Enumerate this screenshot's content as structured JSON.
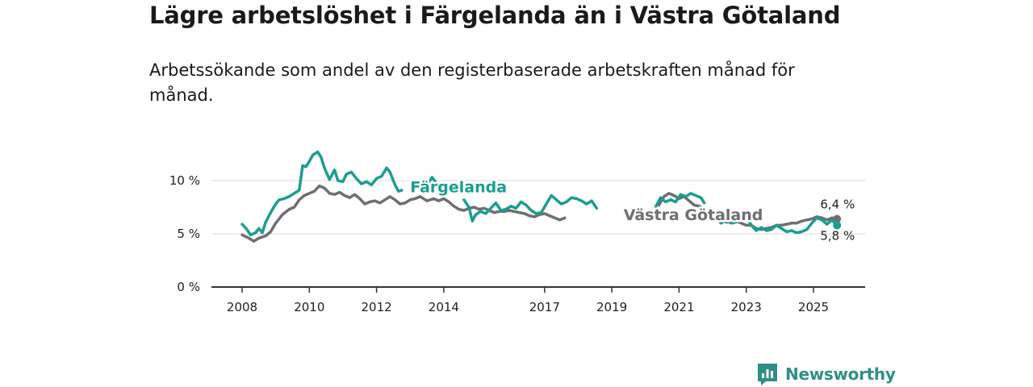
{
  "title": "Lägre arbetslöshet i Färgelanda än i Västra Götaland",
  "subtitle": "Arbetssökande som andel av den registerbaserade arbetskraften månad för månad.",
  "brand": {
    "name": "Newsworthy",
    "icon": "newsworthy-logo-icon",
    "color": "#2f8f86"
  },
  "chart_data": {
    "type": "line",
    "title": "Lägre arbetslöshet i Färgelanda än i Västra Götaland",
    "subtitle": "Arbetssökande som andel av den registerbaserade arbetskraften månad för månad.",
    "xlabel": "",
    "ylabel": "",
    "xlim": [
      2007.9,
      2026.1
    ],
    "ylim": [
      0,
      10
    ],
    "x_ticks": [
      2008,
      2010,
      2012,
      2014,
      2017,
      2019,
      2021,
      2023,
      2025
    ],
    "x_tick_labels": [
      "2008",
      "2010",
      "2012",
      "2014",
      "2017",
      "2019",
      "2021",
      "2023",
      "2025"
    ],
    "y_ticks": [
      0,
      5,
      10
    ],
    "y_tick_labels": [
      "0 %",
      "5 %",
      "10 %"
    ],
    "grid": true,
    "series": [
      {
        "name": "Västra Götaland",
        "color": "#6e6e73",
        "label_color": "#6e6e73",
        "segments": [
          [
            [
              2008.0,
              4.9
            ],
            [
              2008.2,
              4.6
            ],
            [
              2008.35,
              4.3
            ],
            [
              2008.5,
              4.6
            ],
            [
              2008.7,
              4.8
            ],
            [
              2008.85,
              5.2
            ],
            [
              2009.0,
              6.0
            ],
            [
              2009.2,
              6.8
            ],
            [
              2009.4,
              7.3
            ],
            [
              2009.55,
              7.5
            ],
            [
              2009.7,
              8.2
            ],
            [
              2009.85,
              8.6
            ],
            [
              2010.0,
              8.8
            ],
            [
              2010.15,
              9.0
            ],
            [
              2010.3,
              9.5
            ],
            [
              2010.45,
              9.3
            ],
            [
              2010.6,
              8.8
            ],
            [
              2010.75,
              8.7
            ],
            [
              2010.9,
              8.9
            ],
            [
              2011.05,
              8.6
            ],
            [
              2011.2,
              8.4
            ],
            [
              2011.35,
              8.7
            ],
            [
              2011.5,
              8.3
            ],
            [
              2011.65,
              7.8
            ],
            [
              2011.8,
              8.0
            ],
            [
              2011.95,
              8.1
            ],
            [
              2012.1,
              7.9
            ],
            [
              2012.25,
              8.2
            ],
            [
              2012.4,
              8.5
            ],
            [
              2012.55,
              8.2
            ],
            [
              2012.7,
              7.8
            ],
            [
              2012.85,
              7.9
            ],
            [
              2013.0,
              8.2
            ],
            [
              2013.15,
              8.3
            ],
            [
              2013.3,
              8.5
            ],
            [
              2013.5,
              8.1
            ],
            [
              2013.7,
              8.3
            ],
            [
              2013.85,
              8.1
            ],
            [
              2014.0,
              8.3
            ],
            [
              2014.15,
              8.0
            ],
            [
              2014.3,
              7.6
            ],
            [
              2014.45,
              7.3
            ],
            [
              2014.6,
              7.2
            ],
            [
              2014.75,
              7.4
            ],
            [
              2014.9,
              7.5
            ],
            [
              2015.05,
              7.3
            ],
            [
              2015.2,
              7.4
            ],
            [
              2015.35,
              7.2
            ],
            [
              2015.5,
              7.0
            ],
            [
              2015.65,
              7.1
            ],
            [
              2015.8,
              7.1
            ],
            [
              2015.95,
              7.2
            ],
            [
              2016.1,
              7.1
            ],
            [
              2016.25,
              7.0
            ],
            [
              2016.4,
              6.9
            ],
            [
              2016.55,
              6.7
            ],
            [
              2016.7,
              6.6
            ],
            [
              2016.85,
              6.8
            ],
            [
              2017.0,
              6.9
            ],
            [
              2017.15,
              6.7
            ],
            [
              2017.3,
              6.5
            ],
            [
              2017.45,
              6.3
            ],
            [
              2017.6,
              6.5
            ]
          ],
          [
            [
              2020.4,
              7.7
            ],
            [
              2020.55,
              8.5
            ],
            [
              2020.7,
              8.8
            ],
            [
              2020.85,
              8.6
            ],
            [
              2021.0,
              8.3
            ],
            [
              2021.15,
              8.5
            ],
            [
              2021.3,
              8.1
            ],
            [
              2021.45,
              7.7
            ],
            [
              2021.6,
              7.6
            ],
            [
              2021.75,
              7.3
            ]
          ],
          [
            [
              2021.95,
              6.7
            ],
            [
              2022.1,
              6.3
            ],
            [
              2022.25,
              6.4
            ],
            [
              2022.4,
              6.1
            ],
            [
              2022.55,
              6.1
            ],
            [
              2022.7,
              6.2
            ],
            [
              2022.85,
              6.0
            ],
            [
              2023.0,
              5.8
            ],
            [
              2023.15,
              5.8
            ],
            [
              2023.3,
              5.5
            ],
            [
              2023.45,
              5.4
            ],
            [
              2023.6,
              5.5
            ],
            [
              2023.75,
              5.6
            ],
            [
              2023.9,
              5.8
            ],
            [
              2024.05,
              5.8
            ],
            [
              2024.2,
              5.9
            ],
            [
              2024.35,
              6.0
            ],
            [
              2024.5,
              6.0
            ],
            [
              2024.65,
              6.2
            ],
            [
              2024.8,
              6.3
            ],
            [
              2024.95,
              6.4
            ],
            [
              2025.1,
              6.6
            ],
            [
              2025.25,
              6.5
            ],
            [
              2025.4,
              6.3
            ],
            [
              2025.55,
              6.5
            ],
            [
              2025.7,
              6.4
            ]
          ]
        ],
        "label": "Västra Götaland",
        "label_at": [
          2019.35,
          6.3
        ],
        "end_value": 6.4,
        "end_label": "6,4 %"
      },
      {
        "name": "Färgelanda",
        "color": "#1a9e91",
        "label_color": "#1a9e91",
        "segments": [
          [
            [
              2008.0,
              5.9
            ],
            [
              2008.12,
              5.5
            ],
            [
              2008.25,
              4.9
            ],
            [
              2008.4,
              5.1
            ],
            [
              2008.5,
              5.5
            ],
            [
              2008.6,
              5.1
            ],
            [
              2008.7,
              6.1
            ],
            [
              2008.85,
              7.0
            ],
            [
              2009.0,
              7.8
            ],
            [
              2009.1,
              8.2
            ],
            [
              2009.25,
              8.3
            ],
            [
              2009.4,
              8.5
            ],
            [
              2009.55,
              8.8
            ],
            [
              2009.7,
              9.1
            ],
            [
              2009.8,
              11.4
            ],
            [
              2009.9,
              11.3
            ],
            [
              2010.0,
              11.8
            ],
            [
              2010.1,
              12.4
            ],
            [
              2010.25,
              12.7
            ],
            [
              2010.35,
              12.2
            ],
            [
              2010.45,
              11.2
            ],
            [
              2010.6,
              10.1
            ],
            [
              2010.75,
              11.0
            ],
            [
              2010.85,
              10.0
            ],
            [
              2011.0,
              9.9
            ],
            [
              2011.1,
              10.6
            ],
            [
              2011.25,
              10.8
            ],
            [
              2011.4,
              10.2
            ],
            [
              2011.55,
              9.7
            ],
            [
              2011.7,
              9.9
            ],
            [
              2011.85,
              9.6
            ],
            [
              2012.0,
              10.2
            ],
            [
              2012.15,
              10.4
            ],
            [
              2012.3,
              11.2
            ],
            [
              2012.4,
              10.8
            ],
            [
              2012.55,
              9.6
            ],
            [
              2012.65,
              9.0
            ],
            [
              2012.75,
              9.1
            ]
          ],
          [
            [
              2013.5,
              9.6
            ],
            [
              2013.65,
              10.3
            ],
            [
              2013.8,
              9.7
            ]
          ],
          [
            [
              2014.6,
              8.2
            ],
            [
              2014.75,
              7.5
            ],
            [
              2014.85,
              6.2
            ],
            [
              2014.95,
              6.8
            ],
            [
              2015.1,
              7.1
            ],
            [
              2015.25,
              6.9
            ],
            [
              2015.4,
              7.4
            ],
            [
              2015.55,
              7.9
            ],
            [
              2015.7,
              7.2
            ],
            [
              2015.85,
              7.3
            ],
            [
              2016.0,
              7.6
            ],
            [
              2016.15,
              7.4
            ],
            [
              2016.3,
              8.0
            ],
            [
              2016.45,
              7.7
            ],
            [
              2016.6,
              7.2
            ],
            [
              2016.75,
              6.9
            ],
            [
              2016.9,
              7.0
            ],
            [
              2017.05,
              7.8
            ],
            [
              2017.2,
              8.6
            ],
            [
              2017.35,
              8.2
            ],
            [
              2017.5,
              7.8
            ],
            [
              2017.65,
              8.0
            ],
            [
              2017.8,
              8.4
            ],
            [
              2017.95,
              8.3
            ],
            [
              2018.1,
              8.1
            ],
            [
              2018.25,
              7.8
            ],
            [
              2018.4,
              8.1
            ],
            [
              2018.55,
              7.4
            ]
          ],
          [
            [
              2020.3,
              7.5
            ],
            [
              2020.45,
              8.4
            ],
            [
              2020.6,
              8.0
            ],
            [
              2020.75,
              8.2
            ],
            [
              2020.9,
              8.0
            ],
            [
              2021.05,
              8.7
            ],
            [
              2021.2,
              8.5
            ],
            [
              2021.35,
              8.8
            ],
            [
              2021.5,
              8.6
            ],
            [
              2021.65,
              8.4
            ],
            [
              2021.75,
              7.9
            ]
          ],
          [
            [
              2021.95,
              6.6
            ],
            [
              2022.1,
              6.5
            ],
            [
              2022.25,
              6.0
            ],
            [
              2022.4,
              6.3
            ],
            [
              2022.55,
              6.0
            ],
            [
              2022.7,
              6.1
            ],
            [
              2022.85,
              6.5
            ],
            [
              2023.0,
              6.6
            ],
            [
              2023.15,
              5.8
            ],
            [
              2023.3,
              5.3
            ],
            [
              2023.45,
              5.6
            ],
            [
              2023.6,
              5.3
            ],
            [
              2023.75,
              5.4
            ],
            [
              2023.9,
              5.8
            ],
            [
              2024.05,
              5.5
            ],
            [
              2024.2,
              5.2
            ],
            [
              2024.35,
              5.3
            ],
            [
              2024.5,
              5.1
            ],
            [
              2024.65,
              5.2
            ],
            [
              2024.8,
              5.4
            ],
            [
              2024.95,
              6.0
            ],
            [
              2025.1,
              6.5
            ],
            [
              2025.25,
              6.3
            ],
            [
              2025.4,
              5.9
            ],
            [
              2025.55,
              6.3
            ],
            [
              2025.7,
              5.8
            ]
          ]
        ],
        "label": "Färgelanda",
        "label_at": [
          2013.0,
          8.9
        ],
        "end_value": 5.8,
        "end_label": "5,8 %"
      }
    ]
  }
}
